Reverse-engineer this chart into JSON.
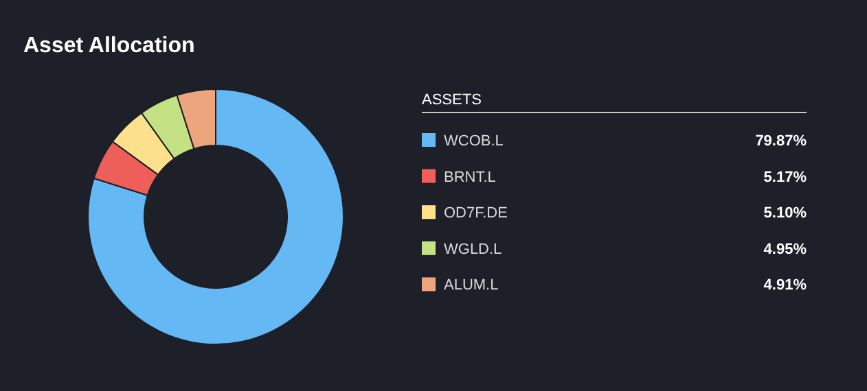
{
  "chart_data": {
    "type": "donut",
    "title": "Asset Allocation",
    "legend_title": "ASSETS",
    "legend": "right",
    "categories": [
      "WCOB.L",
      "BRNT.L",
      "OD7F.DE",
      "WGLD.L",
      "ALUM.L"
    ],
    "values": [
      79.87,
      5.17,
      5.1,
      4.95,
      4.91
    ],
    "value_labels": [
      "79.87%",
      "5.17%",
      "5.10%",
      "4.95%",
      "4.91%"
    ],
    "colors": [
      "#64b8f4",
      "#ef5f5a",
      "#fde08c",
      "#c4e283",
      "#eca57c"
    ]
  }
}
